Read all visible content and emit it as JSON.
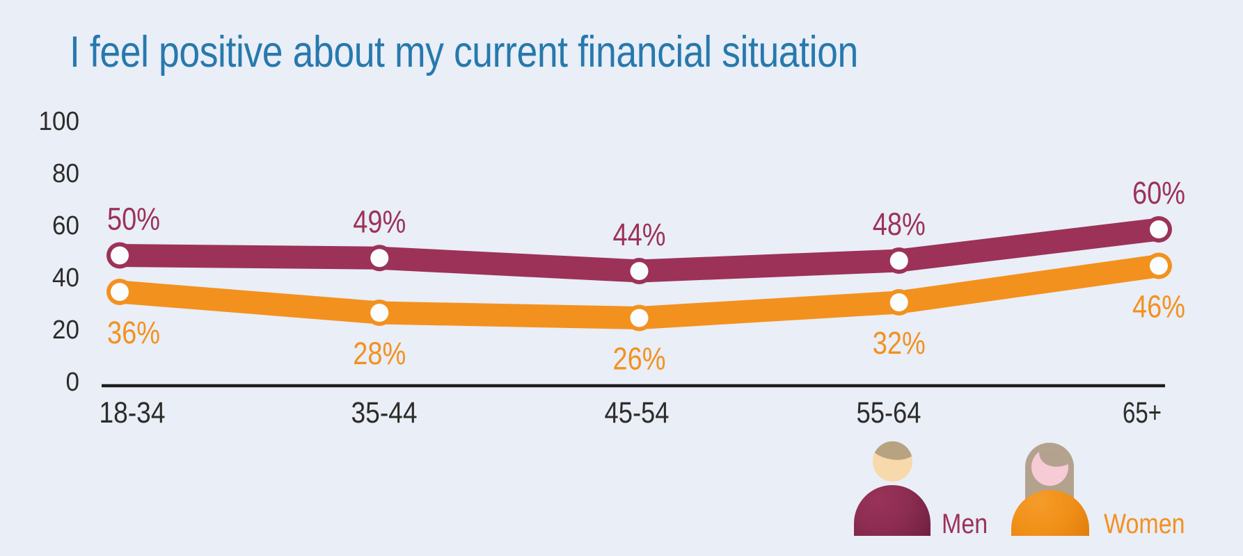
{
  "colors": {
    "background": "#e9eef7",
    "title": "#2779ad",
    "axis_line": "#1d1d1b",
    "tick_text": "#2d2c2a",
    "men": "#9c3258",
    "women": "#f3911e",
    "marker_fill": "#fbfcfe"
  },
  "title": {
    "text": "I feel positive about my current financial situation"
  },
  "chart_data": {
    "type": "line",
    "title": "I feel positive about my current financial situation",
    "xlabel": "",
    "ylabel": "",
    "categories": [
      "18-34",
      "35-44",
      "45-54",
      "55-64",
      "65+"
    ],
    "series": [
      {
        "name": "Men",
        "color": "#9c3258",
        "values": [
          50,
          49,
          44,
          48,
          60
        ],
        "point_labels": [
          "50%",
          "49%",
          "44%",
          "48%",
          "60%"
        ],
        "label_position": "above"
      },
      {
        "name": "Women",
        "color": "#f3911e",
        "values": [
          36,
          28,
          26,
          32,
          46
        ],
        "point_labels": [
          "36%",
          "28%",
          "26%",
          "32%",
          "46%"
        ],
        "label_position": "below"
      }
    ],
    "ylim": [
      0,
      100
    ],
    "yticks": [
      100,
      80,
      60,
      40,
      20,
      0
    ],
    "grid": false,
    "legend_position": "bottom-right"
  },
  "legend": {
    "men_label": "Men",
    "women_label": "Women"
  }
}
